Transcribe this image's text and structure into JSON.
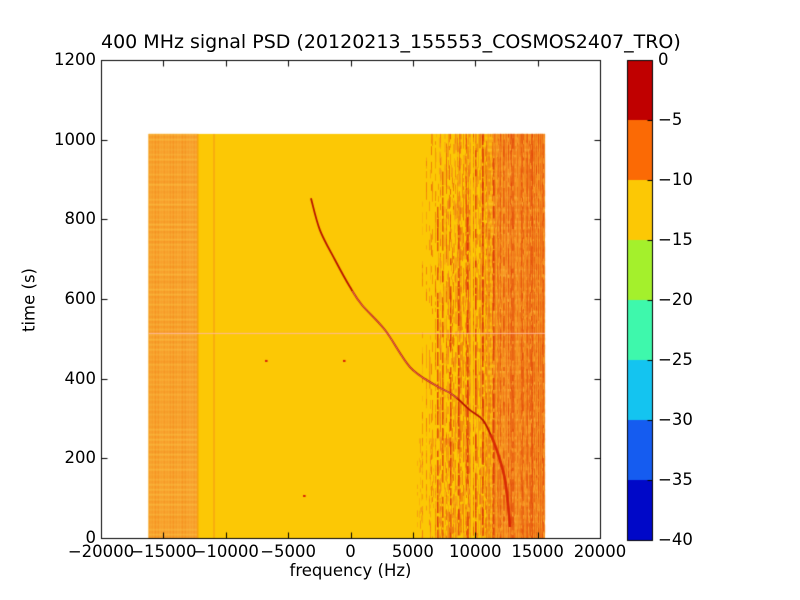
{
  "chart_data": {
    "type": "heatmap",
    "title": "400 MHz signal PSD (20120213_155553_COSMOS2407_TRO)",
    "xlabel": "frequency (Hz)",
    "ylabel": "time (s)",
    "xlim": [
      -20000,
      20000
    ],
    "ylim": [
      0,
      1200
    ],
    "xticks": [
      -20000,
      -15000,
      -10000,
      -5000,
      0,
      5000,
      10000,
      15000,
      20000
    ],
    "xtick_labels": [
      "−20000",
      "−15000",
      "−10000",
      "−5000",
      "0",
      "5000",
      "10000",
      "15000",
      "20000"
    ],
    "yticks": [
      0,
      200,
      400,
      600,
      800,
      1000,
      1200
    ],
    "ytick_labels": [
      "0",
      "200",
      "400",
      "600",
      "800",
      "1000",
      "1200"
    ],
    "grid": false,
    "figure_background": "#ffffff",
    "colorbar": {
      "colormap": "jet-discrete-8",
      "ticks": [
        0,
        -5,
        -10,
        -15,
        -20,
        -25,
        -30,
        -35,
        -40
      ],
      "tick_labels": [
        "0",
        "−5",
        "−10",
        "−15",
        "−20",
        "−25",
        "−30",
        "−35",
        "−40"
      ],
      "segment_colors_top_to_bottom": [
        "#C00000",
        "#FB6A05",
        "#FCC805",
        "#A4F02C",
        "#3EF8AC",
        "#14C4F0",
        "#155CF0",
        "#0008C8"
      ],
      "legend_position": "right"
    },
    "heatmap": {
      "freq_extent_hz": [
        -16200,
        15600
      ],
      "time_extent_s": [
        0,
        1015
      ],
      "background_color": "#FCC805",
      "background_level_db": -12,
      "left_noise_band": {
        "freq_hz": [
          -16200,
          -12300
        ],
        "fade_to_hz": -11400,
        "level_db": -8,
        "base_color": "#FAAC36",
        "stripe_color": "#F3881A",
        "light_row_color": "#FCCE4A"
      },
      "right_noise_band": {
        "freq_hz": [
          10800,
          15600
        ],
        "level_db": -8,
        "color": "#F8992E",
        "band_row_color": "#F07D18"
      },
      "rfi_streaks_band": {
        "freq_hz": [
          5600,
          15600
        ],
        "level_db": -6,
        "streak_colors": [
          "#F5921E",
          "#F0781A",
          "#EA5A0E",
          "#E04008"
        ],
        "strong_streak_color": "#D93108",
        "strong_streak_freqs_hz": [
          6900,
          7350,
          7980,
          8620,
          9300,
          9980,
          10560,
          11430
        ]
      },
      "faint_horizontal_line": {
        "time_s": 515,
        "color": "#FFB9A0"
      },
      "speckles_freq_hz_time_s": [
        [
          -6850,
          447
        ],
        [
          -600,
          447
        ],
        [
          -3800,
          108
        ]
      ],
      "doppler_track": {
        "level_db": -2,
        "color": "#B81200",
        "highlight_color": "#FFB0B0",
        "points_freq_hz_time_s": [
          [
            -3170,
            853
          ],
          [
            -2450,
            773
          ],
          [
            -1240,
            698
          ],
          [
            -40,
            630
          ],
          [
            920,
            585
          ],
          [
            2770,
            522
          ],
          [
            4770,
            429
          ],
          [
            6770,
            384
          ],
          [
            8220,
            359
          ],
          [
            9580,
            321
          ],
          [
            10620,
            296
          ],
          [
            11420,
            246
          ],
          [
            11980,
            196
          ],
          [
            12390,
            146
          ],
          [
            12630,
            83
          ],
          [
            12790,
            28
          ]
        ]
      }
    }
  }
}
